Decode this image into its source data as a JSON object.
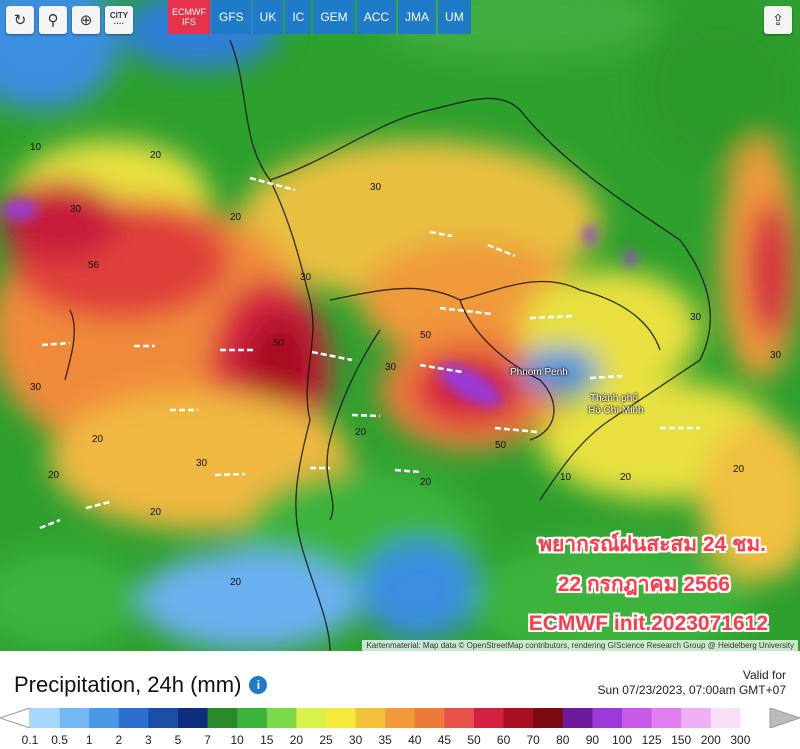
{
  "toolbar": {
    "buttons": [
      {
        "name": "refresh-icon",
        "glyph": "↻"
      },
      {
        "name": "location-pin-icon",
        "glyph": "⚲"
      },
      {
        "name": "zoom-icon",
        "glyph": "⊕"
      }
    ],
    "city_label_line1": "CITY",
    "city_label_line2": "····"
  },
  "models": {
    "active_line1": "ECMWF",
    "active_line2": "IFS",
    "others": [
      "GFS",
      "UK",
      "IC",
      "GEM",
      "ACC",
      "JMA",
      "UM"
    ]
  },
  "share_icon": "share-icon",
  "map_labels": {
    "city1": "Phnom Penh",
    "city2_line1": "Thành phố",
    "city2_line2": "Hồ Chí Minh"
  },
  "overlay": {
    "line1": "พยากรณ์ฝนสะสม 24 ชม.",
    "line2": "22 กรกฎาคม 2566",
    "line3": "ECMWF init.2023071612"
  },
  "attribution": "Kartenmaterial: Map data © OpenStreetMap contributors, rendering GIScience Research Group @ Heidelberg University",
  "footer": {
    "title": "Precipitation, 24h (mm)",
    "valid_label": "Valid for",
    "valid_time": "Sun 07/23/2023, 07:00am GMT+07"
  },
  "legend": {
    "colors": [
      "#a6d8ff",
      "#74b9f5",
      "#4a97e8",
      "#2c6fd0",
      "#1c4ea8",
      "#0e2f80",
      "#2a8a2a",
      "#3cb33c",
      "#7ed84c",
      "#d8f24a",
      "#f5e93a",
      "#f2c13a",
      "#f09a3a",
      "#ee7a3a",
      "#e8504a",
      "#d42040",
      "#a80f20",
      "#7a0a10",
      "#6a1a9a",
      "#9a3ad8",
      "#c85ae8",
      "#e07ef0",
      "#f0b0f5",
      "#f8e0f8",
      "#ffffff"
    ],
    "ticks": [
      "0.1",
      "0.5",
      "1",
      "2",
      "3",
      "5",
      "7",
      "10",
      "15",
      "20",
      "25",
      "30",
      "35",
      "40",
      "45",
      "50",
      "60",
      "70",
      "80",
      "90",
      "100",
      "125",
      "150",
      "200",
      "300"
    ]
  }
}
